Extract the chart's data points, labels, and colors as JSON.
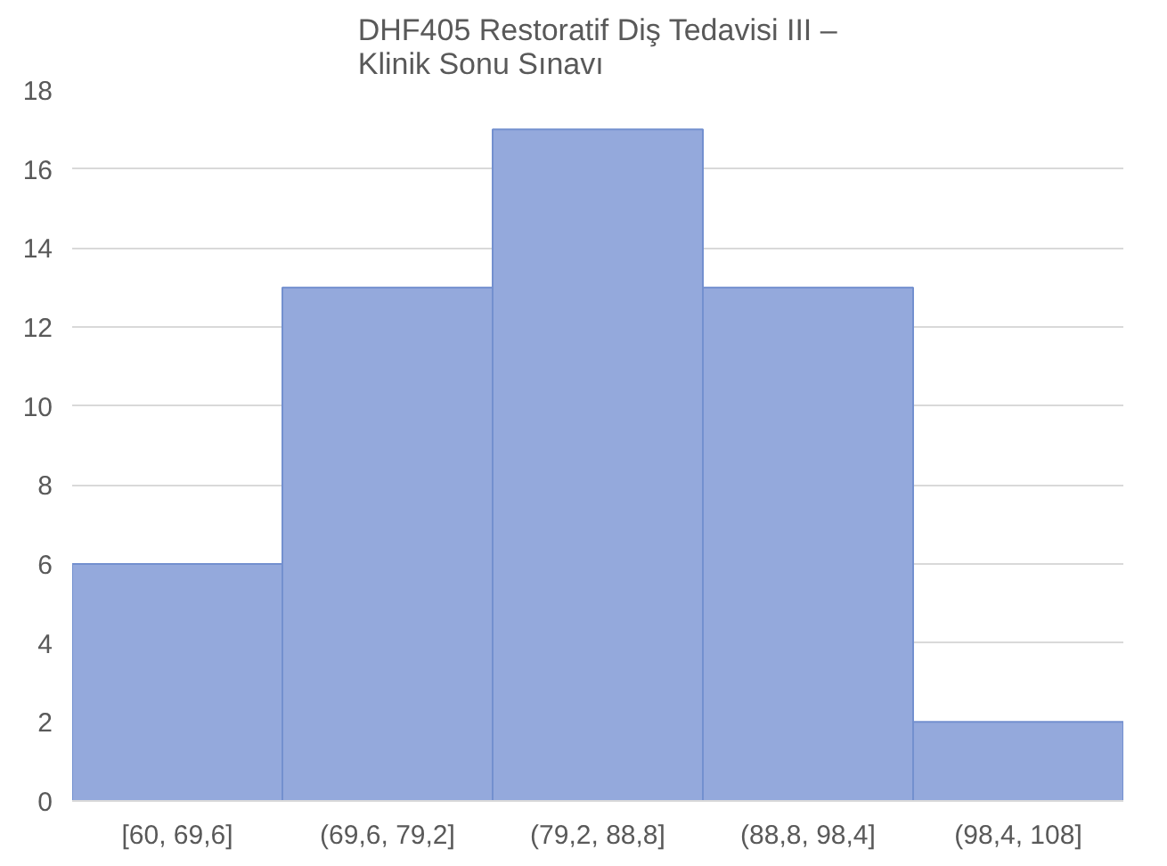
{
  "chart_data": {
    "type": "bar",
    "title": "DHF405 Restoratif Diş Tedavisi III –\nKlinik Sonu Sınavı",
    "categories": [
      "[60, 69,6]",
      "(69,6, 79,2]",
      "(79,2, 88,8]",
      "(88,8, 98,4]",
      "(98,4, 108]"
    ],
    "values": [
      6,
      13,
      17,
      13,
      2
    ],
    "color": "#94a9dc",
    "ylim": [
      0,
      18
    ],
    "yticks": [
      0,
      2,
      4,
      6,
      8,
      10,
      12,
      14,
      16,
      18
    ],
    "grid": "y"
  }
}
